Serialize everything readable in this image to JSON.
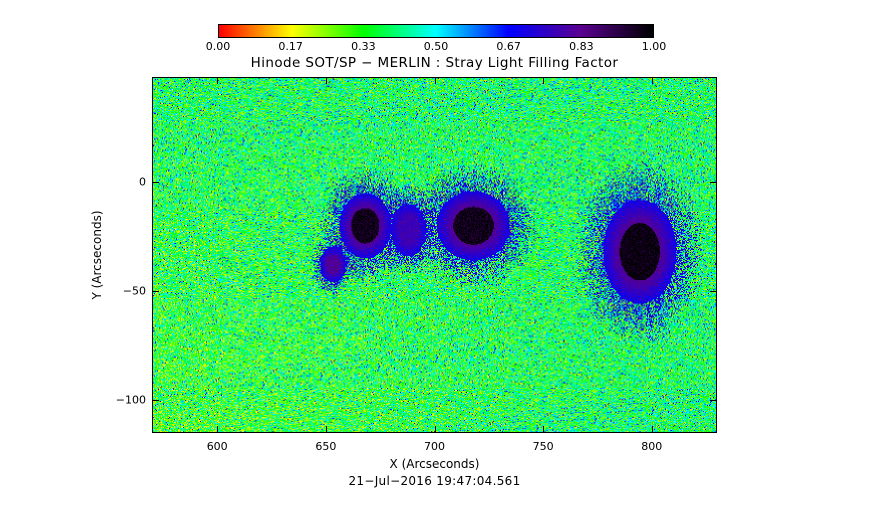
{
  "chart_data": {
    "type": "heatmap",
    "title": "Hinode SOT/SP − MERLIN : Stray Light Filling Factor",
    "xlabel": "X (Arcseconds)",
    "ylabel": "Y (Arcseconds)",
    "timestamp": "21−Jul−2016 19:47:04.561",
    "xlim": [
      570,
      830
    ],
    "ylim": [
      -115,
      48
    ],
    "x_ticks": [
      600,
      650,
      700,
      750,
      800
    ],
    "y_ticks": [
      0,
      -50,
      -100
    ],
    "colorbar": {
      "range": [
        0,
        1
      ],
      "tick_labels": [
        "0.00",
        "0.17",
        "0.33",
        "0.50",
        "0.67",
        "0.83",
        "1.00"
      ],
      "colors": [
        "#ff0000",
        "#ffff00",
        "#00ff00",
        "#00ffff",
        "#0000ff",
        "#5a0090",
        "#000000"
      ]
    },
    "background_value": 0.38,
    "sunspot_features": [
      {
        "cx": 668,
        "cy": -20,
        "rx": 12,
        "ry": 15,
        "core": 0.97
      },
      {
        "cx": 718,
        "cy": -20,
        "rx": 17,
        "ry": 16,
        "core": 0.97
      },
      {
        "cx": 795,
        "cy": -32,
        "rx": 17,
        "ry": 24,
        "core": 0.98
      },
      {
        "cx": 653,
        "cy": -38,
        "rx": 6,
        "ry": 8,
        "core": 0.82
      },
      {
        "cx": 688,
        "cy": -22,
        "rx": 8,
        "ry": 12,
        "core": 0.78
      }
    ]
  }
}
